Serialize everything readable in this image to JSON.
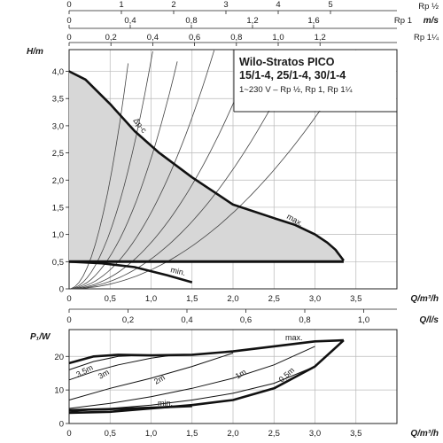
{
  "chart_data": [
    {
      "type": "line",
      "title": "Wilo-Stratos PICO",
      "title_line2": "15/1-4, 25/1-4, 30/1-4",
      "subtitle": "1~230 V – Rp ½, Rp 1, Rp 1¼",
      "xlabel": "Q/m³/h",
      "ylabel": "H/m",
      "xlim": [
        0,
        4
      ],
      "ylim": [
        0,
        4.4
      ],
      "x_ticks": [
        0,
        0.5,
        1.0,
        1.5,
        2.0,
        2.5,
        3.0,
        3.5
      ],
      "x_tick_labels": [
        "0",
        "0,5",
        "1,0",
        "1,5",
        "2,0",
        "2,5",
        "3,0",
        "3,5"
      ],
      "y_ticks": [
        0,
        0.5,
        1.0,
        1.5,
        2.0,
        2.5,
        3.0,
        3.5,
        4.0
      ],
      "y_tick_labels": [
        "0",
        "0,5",
        "1,0",
        "1,5",
        "2,0",
        "2,5",
        "3,0",
        "3,5",
        "4,0"
      ],
      "grid": true,
      "shaded_region": "Δp-c operating area",
      "series": [
        {
          "name": "Δp-c",
          "x": [
            0,
            0.2,
            0.5,
            0.8,
            1.1,
            1.5,
            2.0,
            2.5
          ],
          "y": [
            4.0,
            3.85,
            3.4,
            2.9,
            2.5,
            2.05,
            1.55,
            1.3
          ]
        },
        {
          "name": "max.",
          "x": [
            2.5,
            2.75,
            3.0,
            3.15,
            3.25,
            3.35
          ],
          "y": [
            1.3,
            1.18,
            1.0,
            0.85,
            0.72,
            0.52
          ]
        },
        {
          "name": "min.",
          "x": [
            0,
            0.4,
            0.8,
            1.2,
            1.5
          ],
          "y": [
            0.5,
            0.47,
            0.4,
            0.25,
            0.12
          ]
        },
        {
          "name": "",
          "x": [
            0,
            3.35
          ],
          "y": [
            0.5,
            0.5
          ]
        }
      ],
      "top_scales": [
        {
          "unit": "Rp ½",
          "tick_labels": [
            "0",
            "1",
            "2",
            "3",
            "4",
            "5"
          ]
        },
        {
          "unit_label": "Rp 1",
          "unit": "m/s",
          "tick_labels": [
            "0",
            "0,4",
            "0,8",
            "1,2",
            "1,6"
          ]
        },
        {
          "unit": "Rp 1¼",
          "tick_labels": [
            "0",
            "0,2",
            "0,4",
            "0,6",
            "0,8",
            "1,0",
            "1,2"
          ]
        }
      ],
      "middle_scale": {
        "unit": "Q/l/s",
        "tick_labels": [
          "0",
          "0,2",
          "0,4",
          "0,6",
          "0,8",
          "1,0"
        ]
      }
    },
    {
      "type": "line",
      "xlabel": "Q/m³/h",
      "ylabel": "P₁/W",
      "xlim": [
        0,
        4
      ],
      "ylim": [
        0,
        28
      ],
      "x_ticks": [
        0,
        0.5,
        1.0,
        1.5,
        2.0,
        2.5,
        3.0,
        3.5
      ],
      "x_tick_labels": [
        "0",
        "0,5",
        "1,0",
        "1,5",
        "2,0",
        "2,5",
        "3,0",
        "3,5"
      ],
      "y_ticks": [
        0,
        10,
        20
      ],
      "y_tick_labels": [
        "0",
        "10",
        "20"
      ],
      "grid": true,
      "series": [
        {
          "name": "max.",
          "x": [
            0,
            0.3,
            0.6,
            1.0,
            1.5,
            2.0,
            2.5,
            3.0,
            3.35
          ],
          "y": [
            18,
            20,
            20.5,
            20.3,
            20.5,
            21.5,
            23,
            24.5,
            24.8
          ]
        },
        {
          "name": "min.",
          "x": [
            0,
            0.5,
            1.0,
            1.5
          ],
          "y": [
            4,
            4.3,
            4.7,
            5.2
          ]
        },
        {
          "name": "",
          "x": [
            0,
            0.5,
            1.0,
            1.5,
            2.0,
            2.5,
            3.0,
            3.35
          ],
          "y": [
            3.2,
            3.5,
            4.5,
            5.5,
            7,
            10.5,
            17,
            24.8
          ]
        },
        {
          "name": "3,5m",
          "x": [
            0,
            0.3,
            0.6,
            1.0
          ],
          "y": [
            16,
            18.5,
            20,
            20.5
          ]
        },
        {
          "name": "3m",
          "x": [
            0,
            0.3,
            0.6,
            1.0,
            1.3
          ],
          "y": [
            13,
            15.5,
            17.5,
            19.5,
            20.5
          ]
        },
        {
          "name": "2m",
          "x": [
            0,
            0.5,
            1.0,
            1.5,
            2.0
          ],
          "y": [
            7,
            10.5,
            13.5,
            17,
            21
          ]
        },
        {
          "name": "1m",
          "x": [
            0,
            0.5,
            1.0,
            1.5,
            2.0,
            2.5,
            3.0
          ],
          "y": [
            4.5,
            6,
            8,
            10.5,
            13.5,
            17.5,
            23
          ]
        },
        {
          "name": "0,5m",
          "x": [
            0,
            0.5,
            1.0,
            1.5,
            2.0,
            2.5,
            3.0,
            3.35
          ],
          "y": [
            3.5,
            4.5,
            5.5,
            7,
            9,
            12,
            17,
            24.8
          ]
        }
      ]
    }
  ]
}
